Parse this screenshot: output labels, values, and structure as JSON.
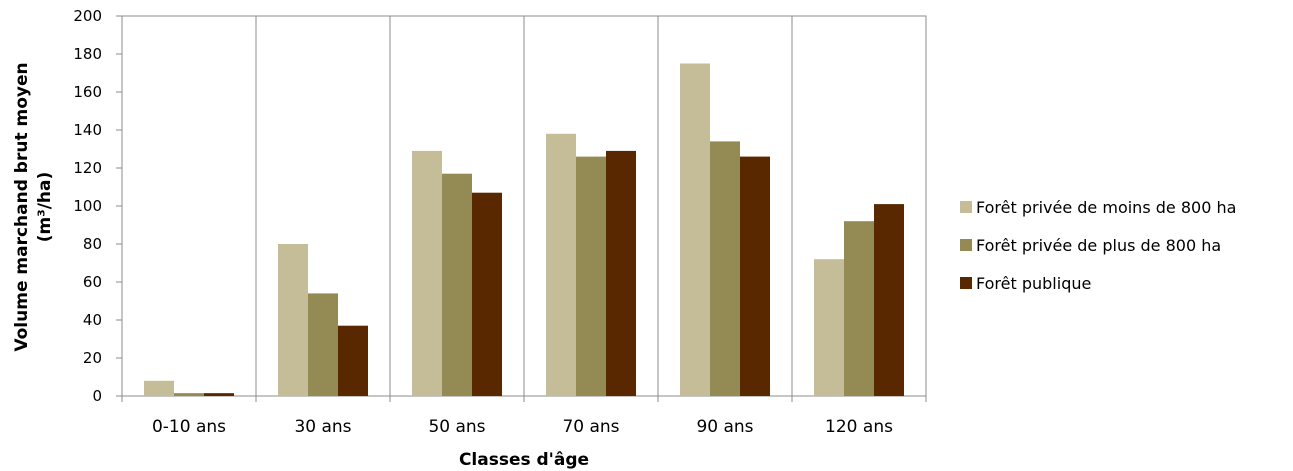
{
  "chart_data": {
    "type": "bar",
    "categories": [
      "0-10 ans",
      "30 ans",
      "50 ans",
      "70 ans",
      "90 ans",
      "120 ans"
    ],
    "series": [
      {
        "name": "Forêt privée de moins de 800 ha",
        "color": "#c4bd97",
        "values": [
          8,
          80,
          129,
          138,
          175,
          72
        ]
      },
      {
        "name": "Forêt privée de plus de 800 ha",
        "color": "#948a54",
        "values": [
          1.5,
          54,
          117,
          126,
          134,
          92
        ]
      },
      {
        "name": "Forêt publique",
        "color": "#5a2800",
        "values": [
          1.5,
          37,
          107,
          129,
          126,
          101
        ]
      }
    ],
    "xlabel": "Classes d'âge",
    "ylabel_line1": "Volume marchand brut moyen",
    "ylabel_line2": "(m³/ha)",
    "ylim": [
      0,
      200
    ],
    "yticks": [
      0,
      20,
      40,
      60,
      80,
      100,
      120,
      140,
      160,
      180,
      200
    ],
    "grid": "vertical category separators",
    "legend_position": "right"
  }
}
